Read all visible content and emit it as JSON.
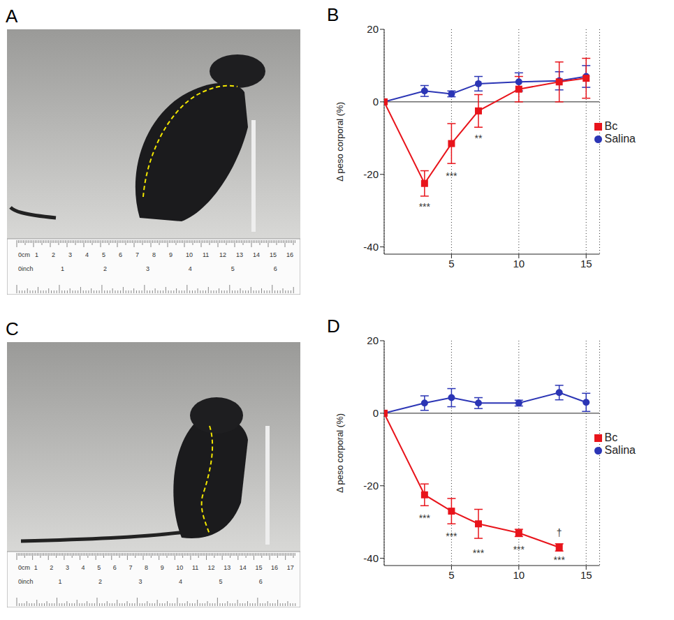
{
  "photos": [
    {
      "panel": "A",
      "ruler": {
        "cm_labels": [
          "0cm",
          "1",
          "2",
          "3",
          "4",
          "5",
          "6",
          "7",
          "8",
          "9",
          "10",
          "11",
          "12",
          "13",
          "14",
          "15",
          "16"
        ],
        "inch_labels": [
          "0inch",
          "1",
          "2",
          "3",
          "4",
          "5",
          "6"
        ]
      }
    },
    {
      "panel": "C",
      "ruler": {
        "cm_labels": [
          "0cm",
          "1",
          "2",
          "3",
          "4",
          "5",
          "6",
          "7",
          "8",
          "9",
          "10",
          "11",
          "12",
          "13",
          "14",
          "15",
          "16",
          "17"
        ],
        "inch_labels": [
          "0inch",
          "1",
          "2",
          "3",
          "4",
          "5",
          "6"
        ]
      }
    }
  ],
  "chart_data": [
    {
      "type": "line",
      "panel": "B",
      "y_label": "Δ peso corporal (%)",
      "x": [
        0,
        3,
        5,
        7,
        10,
        13,
        15
      ],
      "xlim": [
        0,
        16
      ],
      "xticks": [
        5,
        10,
        15
      ],
      "ylim": [
        -42,
        20
      ],
      "yticks": [
        -40,
        -20,
        0,
        20
      ],
      "grid": "x",
      "legend": "right",
      "series": [
        {
          "name": "Salina",
          "color": "#2b35b5",
          "marker": "circle",
          "values": [
            0,
            3,
            2.2,
            5,
            5.5,
            5.8,
            7
          ],
          "errors": [
            0,
            1.5,
            0.8,
            2,
            2.5,
            2.5,
            3
          ]
        },
        {
          "name": "Bc",
          "color": "#e8141b",
          "marker": "square",
          "values": [
            0,
            -22.5,
            -11.5,
            -2.5,
            3.5,
            5.5,
            6.5
          ],
          "errors": [
            0,
            3.5,
            5.5,
            4.5,
            3.5,
            5.5,
            5.5
          ]
        }
      ],
      "annotations": [
        {
          "x": 3,
          "y": -29,
          "text": "***"
        },
        {
          "x": 5,
          "y": -20.5,
          "text": "***"
        },
        {
          "x": 7,
          "y": -10,
          "text": "**"
        }
      ]
    },
    {
      "type": "line",
      "panel": "D",
      "y_label": "Δ peso corporal (%)",
      "x": [
        0,
        3,
        5,
        7,
        10,
        13,
        15
      ],
      "xlim": [
        0,
        16
      ],
      "xticks": [
        5,
        10,
        15
      ],
      "ylim": [
        -42,
        20
      ],
      "yticks": [
        -40,
        -20,
        0,
        20
      ],
      "grid": "x",
      "legend": "right",
      "series": [
        {
          "name": "Salina",
          "color": "#2b35b5",
          "marker": "circle",
          "values": [
            0,
            2.8,
            4.3,
            2.8,
            2.8,
            5.7,
            3
          ],
          "errors": [
            0,
            2,
            2.5,
            1.5,
            0.8,
            2,
            2.5
          ]
        },
        {
          "name": "Bc",
          "color": "#e8141b",
          "marker": "square",
          "values": [
            0,
            -22.5,
            -27,
            -30.5,
            -33,
            -37,
            null
          ],
          "errors": [
            0,
            3,
            3.5,
            4,
            1,
            1,
            null
          ]
        }
      ],
      "annotations": [
        {
          "x": 3,
          "y": -29,
          "text": "***"
        },
        {
          "x": 5,
          "y": -34,
          "text": "***"
        },
        {
          "x": 7,
          "y": -38.5,
          "text": "***"
        },
        {
          "x": 10,
          "y": -37.5,
          "text": "***"
        },
        {
          "x": 13,
          "y": -40.5,
          "text": "***"
        },
        {
          "x": 13,
          "y": -33,
          "text": "†"
        }
      ]
    }
  ]
}
